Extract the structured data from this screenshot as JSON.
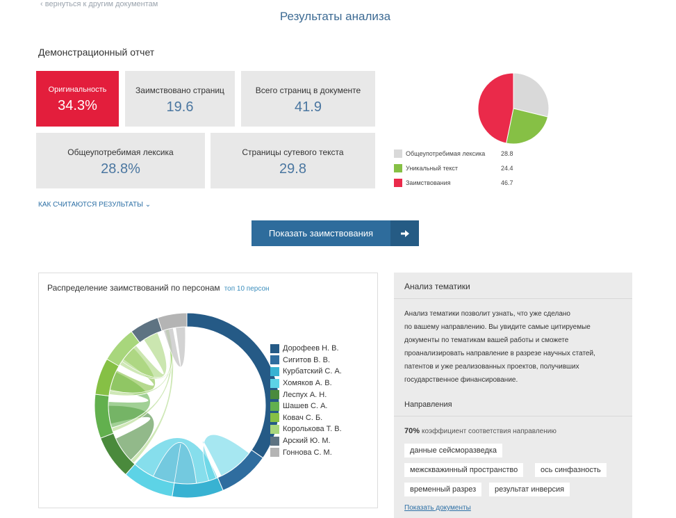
{
  "nav": {
    "back_label": "вернуться к другим документам"
  },
  "page": {
    "title": "Результаты анализа",
    "report_name": "Демонстрационный отчет"
  },
  "stats": {
    "originality": {
      "label": "Оригинальность",
      "value": "34.3%"
    },
    "borrowed_pages": {
      "label": "Заимствовано страниц",
      "value": "19.6"
    },
    "total_pages": {
      "label": "Всего страниц в документе",
      "value": "41.9"
    },
    "common_lexicon": {
      "label": "Общеупотребимая лексика",
      "value": "28.8%"
    },
    "essential_pages": {
      "label": "Страницы сутевого текста",
      "value": "29.8"
    }
  },
  "how_link": "КАК СЧИТАЮТСЯ РЕЗУЛЬТАТЫ",
  "show_button": "Показать заимствования",
  "pie": {
    "legend": [
      {
        "label": "Общеупотребимая лексика",
        "value": "28.8",
        "color": "#d9d9d9"
      },
      {
        "label": "Уникальный текст",
        "value": "24.4",
        "color": "#86c045"
      },
      {
        "label": "Заимствования",
        "value": "46.7",
        "color": "#ea2a4a"
      }
    ]
  },
  "chord": {
    "title": "Распределение заимствований по персонам",
    "top_link": "топ 10 персон",
    "persons": [
      {
        "name": "Дорофеев Н. В.",
        "color": "#255a86",
        "share": 27
      },
      {
        "name": "Сигитов В. В.",
        "color": "#2f6d9f",
        "share": 7
      },
      {
        "name": "Курбатский С. А.",
        "color": "#38b2d2",
        "share": 7
      },
      {
        "name": "Хомяков А. В.",
        "color": "#5dd3e6",
        "share": 7
      },
      {
        "name": "Леспух А. Н.",
        "color": "#4a8a3c",
        "share": 6
      },
      {
        "name": "Шашев С. А.",
        "color": "#62b04e",
        "share": 6
      },
      {
        "name": "Ковач С. Б.",
        "color": "#86c045",
        "share": 5
      },
      {
        "name": "Королькова Т. В.",
        "color": "#a8d67c",
        "share": 5
      },
      {
        "name": "Арский Ю. М.",
        "color": "#5e7382",
        "share": 4
      },
      {
        "name": "Гоннова С. М.",
        "color": "#b4b4b4",
        "share": 4
      }
    ]
  },
  "topics": {
    "title": "Анализ тематики",
    "description_lines": [
      "Анализ тематики позволит узнать, что уже сделано",
      "по вашему направлению. Вы увидите самые цитируемые",
      "документы по тематикам вашей работы и сможете",
      "проанализировать направление в разрезе научных статей,",
      "патентов и уже реализованных проектов, получивших",
      "государственное финансирование."
    ],
    "directions_title": "Направления",
    "coef_value": "70%",
    "coef_text": "коэффициент соответствия направлению",
    "tags": [
      "данные сейсморазведка",
      "межскважинный пространство",
      "ось синфазность",
      "временный разрез",
      "результат инверсия"
    ],
    "show_docs": "Показать документы"
  }
}
